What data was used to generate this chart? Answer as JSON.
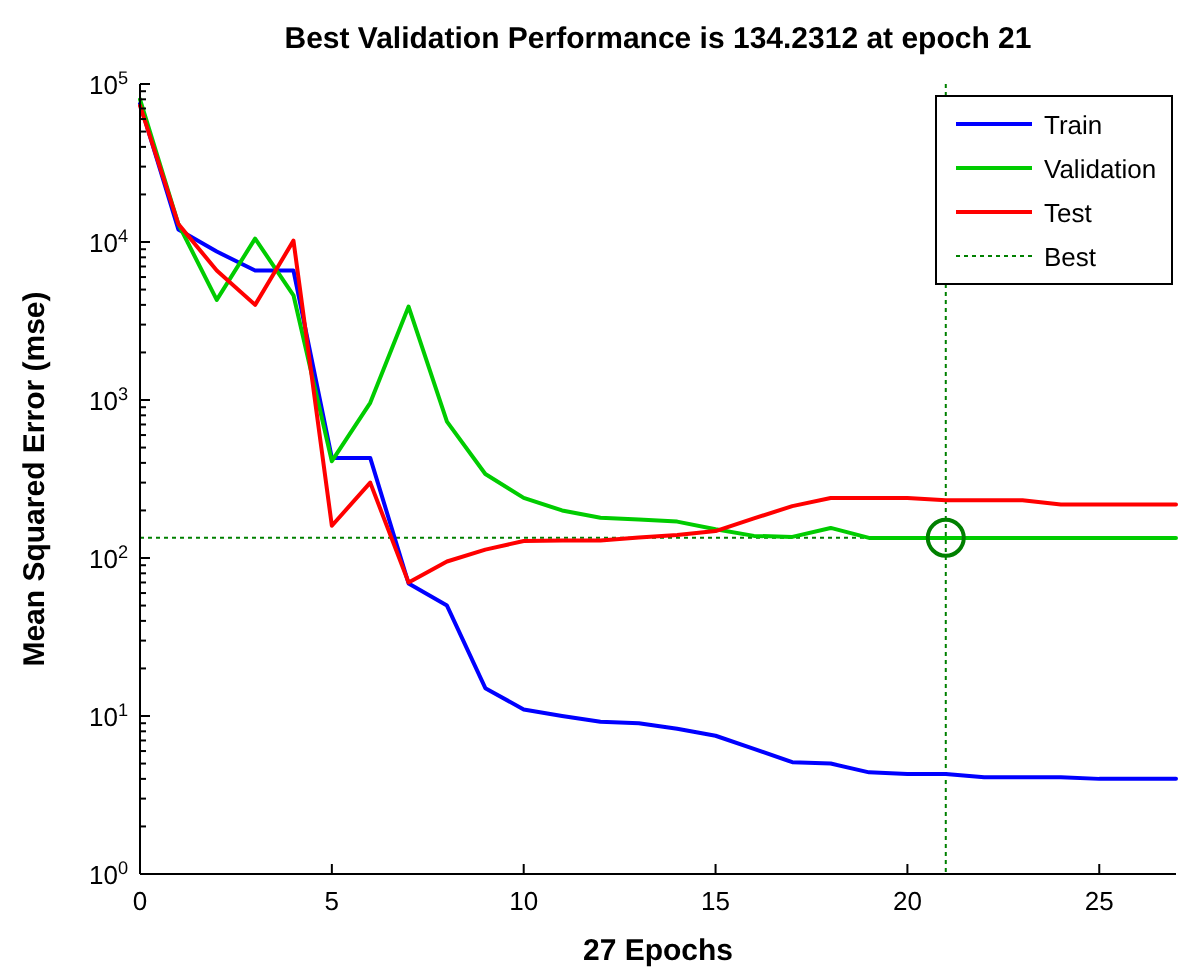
{
  "chart_data": {
    "type": "line",
    "title": "Best Validation Performance is 134.2312 at epoch 21",
    "xlabel": "27 Epochs",
    "ylabel": "Mean Squared Error  (mse)",
    "log": "y",
    "xlim": [
      0,
      27
    ],
    "xticks": [
      0,
      5,
      10,
      15,
      20,
      25
    ],
    "ylim": [
      1,
      100000
    ],
    "yticks": [
      {
        "value": 1,
        "label": "10$^{0}$"
      },
      {
        "value": 10,
        "label": "10$^{1}$"
      },
      {
        "value": 100,
        "label": "10$^{2}$"
      },
      {
        "value": 1000,
        "label": "10$^{3}$"
      },
      {
        "value": 10000,
        "label": "10$^{4}$"
      },
      {
        "value": 100000,
        "label": "10$^{5}$"
      }
    ],
    "grid": false,
    "legend": "top right",
    "x": [
      0,
      1,
      2,
      3,
      4,
      5,
      6,
      7,
      8,
      9,
      10,
      11,
      12,
      13,
      14,
      15,
      16,
      17,
      18,
      19,
      20,
      21,
      22,
      23,
      24,
      25,
      26,
      27
    ],
    "series": [
      {
        "name": "Train",
        "color": "#0000ff",
        "values": [
          75000,
          12000,
          8700,
          6600,
          6600,
          430,
          430,
          69,
          50,
          15,
          11,
          10,
          9.2,
          9,
          8.3,
          7.5,
          6.2,
          5.1,
          5,
          4.4,
          4.3,
          4.3,
          4.1,
          4.1,
          4.1,
          4,
          4,
          4
        ]
      },
      {
        "name": "Validation",
        "color": "#00cc00",
        "values": [
          80000,
          13000,
          4300,
          10500,
          4600,
          410,
          960,
          3900,
          730,
          340,
          240,
          200,
          180,
          175,
          170,
          152,
          138,
          136,
          155,
          134,
          134,
          134,
          134,
          134,
          134,
          134,
          134,
          134
        ]
      },
      {
        "name": "Test",
        "color": "#ff0000",
        "values": [
          73000,
          13000,
          6600,
          4000,
          10200,
          160,
          300,
          70,
          95,
          113,
          128,
          129,
          129,
          135,
          140,
          148,
          178,
          213,
          240,
          240,
          240,
          232,
          232,
          232,
          218,
          218,
          218,
          218
        ]
      },
      {
        "name": "Best",
        "type": "scatter",
        "color": "#008000",
        "marker": "circle",
        "line_style": "dotted",
        "x": [
          21
        ],
        "values": [
          134.2312
        ]
      }
    ],
    "ref_lines": [
      {
        "axis": "x",
        "value": 21,
        "color": "#008000",
        "line_style": "dotted"
      },
      {
        "axis": "y",
        "value": 134.2312,
        "color": "#008000",
        "line_style": "dotted"
      }
    ]
  }
}
